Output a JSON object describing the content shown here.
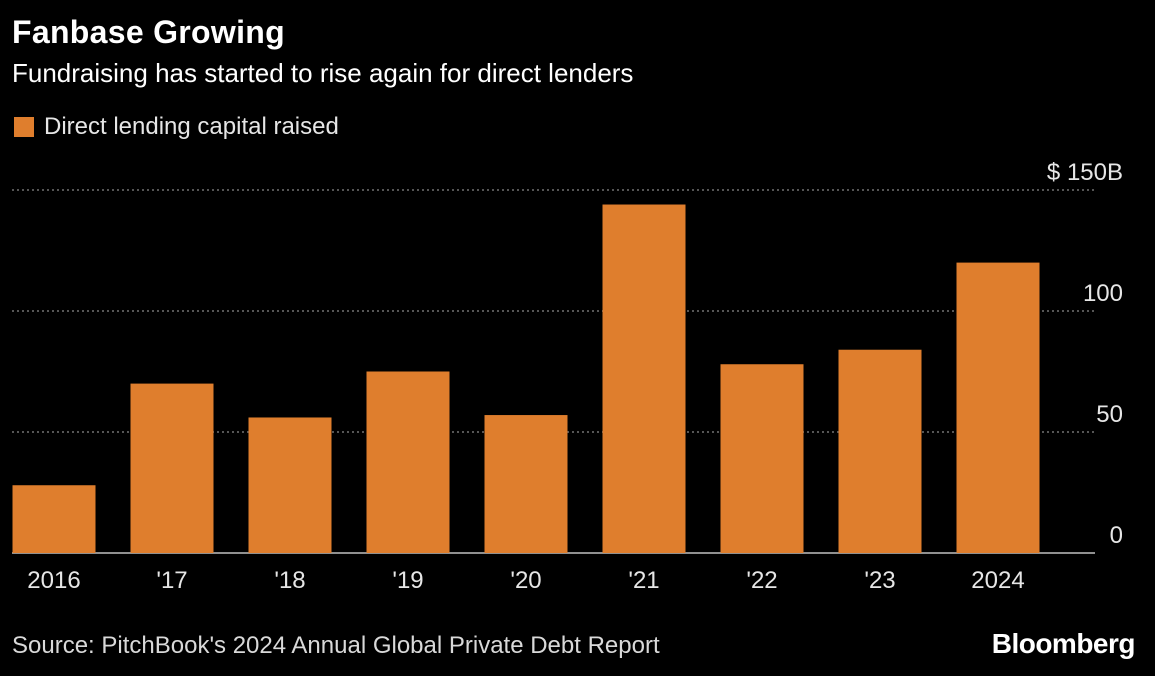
{
  "header": {
    "title": "Fanbase Growing",
    "subtitle": "Fundraising has started to rise again for direct lenders"
  },
  "legend": {
    "label": "Direct lending capital raised",
    "color": "#df7e2d"
  },
  "footer": {
    "source": "Source: PitchBook's 2024 Annual Global Private Debt Report",
    "brand": "Bloomberg"
  },
  "chart_data": {
    "type": "bar",
    "categories": [
      "2016",
      "'17",
      "'18",
      "'19",
      "'20",
      "'21",
      "'22",
      "'23",
      "2024"
    ],
    "series": [
      {
        "name": "Direct lending capital raised",
        "values": [
          28,
          70,
          56,
          75,
          57,
          144,
          78,
          84,
          120
        ]
      }
    ],
    "ylim": [
      0,
      150
    ],
    "yticks": [
      0,
      50,
      100,
      150
    ],
    "ytick_labels": [
      "0",
      "50",
      "100",
      "$ 150B"
    ],
    "grid": true,
    "bar_color": "#df7e2d",
    "axis_side": "right"
  }
}
